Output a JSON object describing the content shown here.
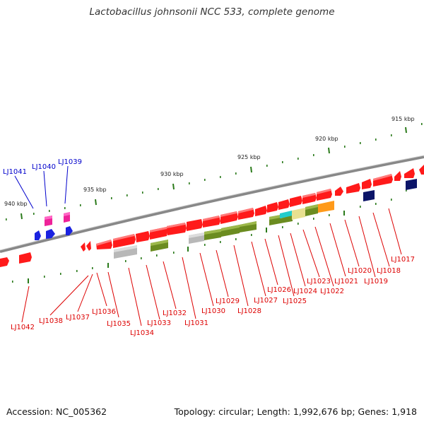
{
  "title": "Lactobacillus johnsonii NCC 533, complete genome",
  "footer": {
    "accession": "Accession: NC_005362",
    "topology": "Topology: circular; Length: 1,992,676 bp; Genes: 1,918"
  },
  "scale_ticks": [
    "915 kbp",
    "920 kbp",
    "925 kbp",
    "930 kbp",
    "935 kbp",
    "940 kbp"
  ],
  "colors": {
    "gene_red": "#ff1a1a",
    "gene_magenta": "#ee2299",
    "gene_blue": "#1a22e0",
    "gene_navy": "#0b1468",
    "gene_olive": "#6b8c20",
    "gene_gray": "#b8b8b8",
    "gene_cyan": "#22cccc",
    "gene_khaki": "#e8e090",
    "gene_orange": "#ff9a1a",
    "label_red": "#dd0000",
    "label_blue": "#0000cc",
    "backbone": "#888888",
    "tick": "#2a7a1a"
  },
  "gene_labels": {
    "top": [
      "LJ1041",
      "LJ1040",
      "LJ1039"
    ],
    "bottom": [
      "LJ1042",
      "LJ1038",
      "LJ1037",
      "LJ1036",
      "LJ1035",
      "LJ1034",
      "LJ1033",
      "LJ1032",
      "LJ1031",
      "LJ1030",
      "LJ1029",
      "LJ1028",
      "LJ1027",
      "LJ1026",
      "LJ1025",
      "LJ1024",
      "LJ1023",
      "LJ1022",
      "LJ1021",
      "LJ1020",
      "LJ1019",
      "LJ1018",
      "LJ1017"
    ]
  }
}
